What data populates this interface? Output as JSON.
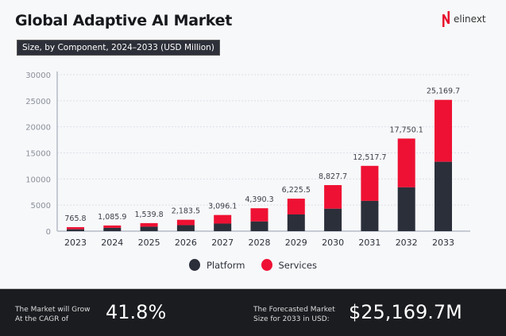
{
  "header": {
    "title": "Global Adaptive AI Market",
    "subtitle": "Size, by Component, 2024–2033 (USD Million)",
    "logo_text": "elinext"
  },
  "colors": {
    "platform": "#2b2f3a",
    "services": "#ee1133",
    "footer_bg": "#1b1c20"
  },
  "chart_data": {
    "type": "bar",
    "stacked": true,
    "categories": [
      "2023",
      "2024",
      "2025",
      "2026",
      "2027",
      "2028",
      "2029",
      "2030",
      "2031",
      "2032",
      "2033"
    ],
    "totals": [
      765.8,
      1085.9,
      1539.8,
      2183.5,
      3096.1,
      4390.3,
      6225.5,
      8827.7,
      12517.7,
      17750.1,
      25169.7
    ],
    "total_labels": [
      "765.8",
      "1,085.9",
      "1,539.8",
      "2,183.5",
      "3,096.1",
      "4,390.3",
      "6,225.5",
      "8,827.7",
      "12,517.7",
      "17,750.1",
      "25,169.7"
    ],
    "series": [
      {
        "name": "Platform",
        "values": [
          350,
          620,
          850,
          1150,
          1450,
          1850,
          3200,
          4300,
          5800,
          8400,
          13300
        ]
      },
      {
        "name": "Services",
        "values": [
          415.8,
          465.9,
          689.8,
          1033.5,
          1646.1,
          2540.3,
          3025.5,
          4527.7,
          6717.7,
          9350.1,
          11869.7
        ]
      }
    ],
    "yticks": [
      "0",
      "5000",
      "10000",
      "15000",
      "20000",
      "25000",
      "30000"
    ],
    "ylim": [
      0,
      30000
    ],
    "grid": true,
    "legend": "bottom-center"
  },
  "legend": {
    "platform": "Platform",
    "services": "Services"
  },
  "footer": {
    "cagr_label_1": "The Market will Grow",
    "cagr_label_2": "At the CAGR of",
    "cagr_value": "41.8%",
    "forecast_label_1": "The Forecasted Market",
    "forecast_label_2": "Size for 2033 in USD:",
    "forecast_value": "$25,169.7M"
  }
}
